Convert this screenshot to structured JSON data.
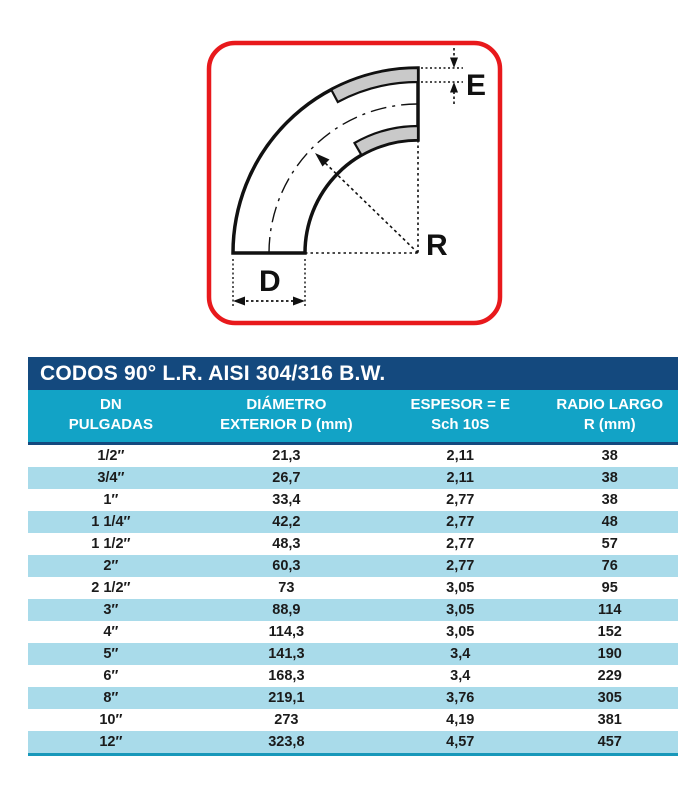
{
  "diagram": {
    "labels": {
      "e": "E",
      "r": "R",
      "d": "D"
    },
    "border_color": "#e8191c",
    "wall_fill": "#c9c9c9"
  },
  "table": {
    "title": "CODOS 90° L.R. AISI 304/316 B.W.",
    "columns": [
      {
        "line1": "DN",
        "line2": "PULGADAS"
      },
      {
        "line1": "DIÁMETRO",
        "line2": "EXTERIOR D (mm)"
      },
      {
        "line1": "ESPESOR = E",
        "line2": "Sch 10S"
      },
      {
        "line1": "RADIO LARGO",
        "line2": "R (mm)"
      }
    ],
    "rows": [
      [
        "1/2″",
        "21,3",
        "2,11",
        "38"
      ],
      [
        "3/4″",
        "26,7",
        "2,11",
        "38"
      ],
      [
        "1″",
        "33,4",
        "2,77",
        "38"
      ],
      [
        "1 1/4″",
        "42,2",
        "2,77",
        "48"
      ],
      [
        "1 1/2″",
        "48,3",
        "2,77",
        "57"
      ],
      [
        "2″",
        "60,3",
        "2,77",
        "76"
      ],
      [
        "2 1/2″",
        "73",
        "3,05",
        "95"
      ],
      [
        "3″",
        "88,9",
        "3,05",
        "114"
      ],
      [
        "4″",
        "114,3",
        "3,05",
        "152"
      ],
      [
        "5″",
        "141,3",
        "3,4",
        "190"
      ],
      [
        "6″",
        "168,3",
        "3,4",
        "229"
      ],
      [
        "8″",
        "219,1",
        "3,76",
        "305"
      ],
      [
        "10″",
        "273",
        "4,19",
        "381"
      ],
      [
        "12″",
        "323,8",
        "4,57",
        "457"
      ]
    ],
    "colors": {
      "title_bg": "#14497e",
      "header_bg": "#12a3c6",
      "stripe_bg": "#a9dbea",
      "bottom_border": "#1898ba"
    }
  }
}
